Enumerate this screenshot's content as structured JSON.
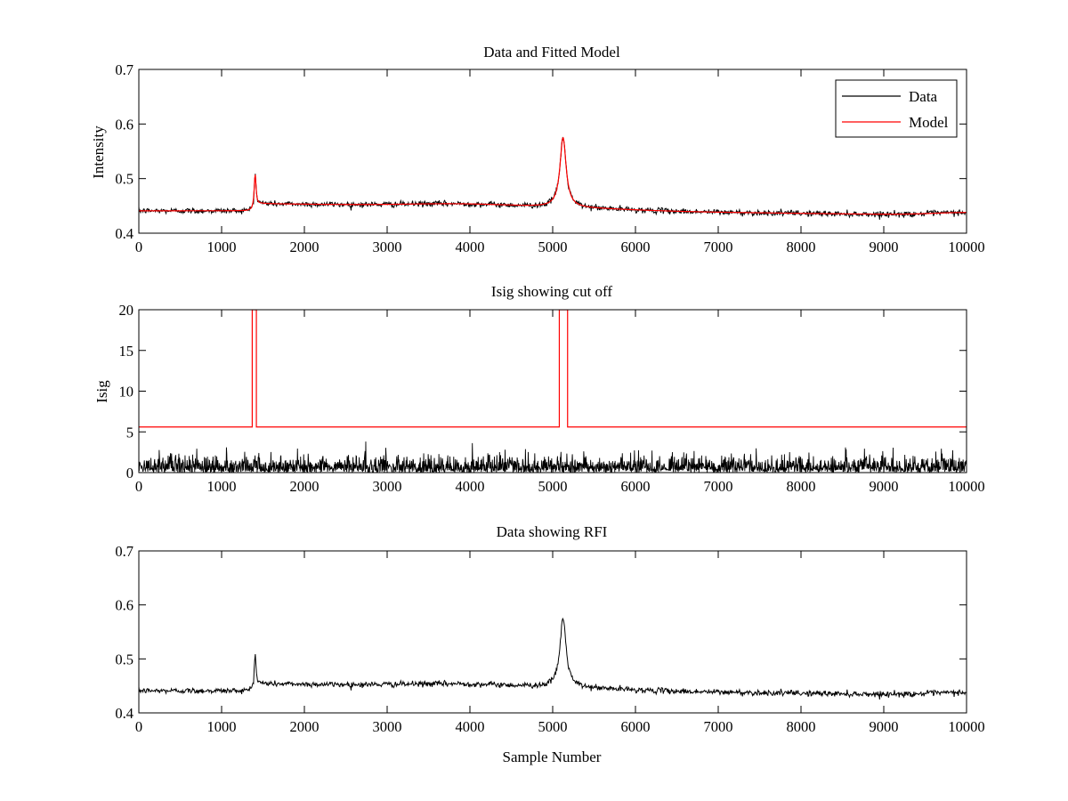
{
  "chart_data": [
    {
      "type": "line",
      "title": "Data and Fitted Model",
      "xlabel": "",
      "ylabel": "Intensity",
      "xlim": [
        0,
        10000
      ],
      "ylim": [
        0.4,
        0.7
      ],
      "xticks": [
        "0",
        "1000",
        "2000",
        "3000",
        "4000",
        "5000",
        "6000",
        "7000",
        "8000",
        "9000",
        "10000"
      ],
      "yticks": [
        "0.4",
        "0.5",
        "0.6",
        "0.7"
      ],
      "legend": {
        "placement": "top-right",
        "entries": [
          "Data",
          "Model"
        ]
      },
      "grid": false,
      "series": [
        {
          "name": "Data",
          "color": "#000000",
          "description_points": {
            "x": [
              0,
              1000,
              1300,
              1400,
              1500,
              2000,
              3000,
              4000,
              4800,
              5050,
              5120,
              5200,
              5400,
              6000,
              7000,
              8000,
              9000,
              10000
            ],
            "y": [
              0.441,
              0.442,
              0.446,
              0.515,
              0.457,
              0.456,
              0.452,
              0.455,
              0.455,
              0.47,
              0.585,
              0.5,
              0.46,
              0.448,
              0.443,
              0.44,
              0.441,
              0.448
            ]
          }
        },
        {
          "name": "Model",
          "color": "#ff0000",
          "description_points": {
            "x": [
              0,
              1000,
              1300,
              1400,
              1500,
              2000,
              3000,
              4000,
              4800,
              5050,
              5120,
              5200,
              5400,
              6000,
              7000,
              8000,
              9000,
              10000
            ],
            "y": [
              0.441,
              0.442,
              0.446,
              0.515,
              0.457,
              0.456,
              0.452,
              0.455,
              0.455,
              0.47,
              0.585,
              0.5,
              0.46,
              0.448,
              0.443,
              0.44,
              0.441,
              0.448
            ]
          }
        }
      ]
    },
    {
      "type": "line",
      "title": "Isig showing cut off",
      "xlabel": "",
      "ylabel": "Isig",
      "xlim": [
        0,
        10000
      ],
      "ylim": [
        0,
        20
      ],
      "xticks": [
        "0",
        "1000",
        "2000",
        "3000",
        "4000",
        "5000",
        "6000",
        "7000",
        "8000",
        "9000",
        "10000"
      ],
      "yticks": [
        "0",
        "5",
        "10",
        "15",
        "20"
      ],
      "grid": false,
      "series": [
        {
          "color": "#000000",
          "description": "noise between 0 and about 4",
          "min": 0,
          "max": 4
        },
        {
          "color": "#ff0000",
          "description": "cut-off threshold with masked regions",
          "baseline": 5.6,
          "masked_ranges": [
            [
              1370,
              1420
            ],
            [
              5080,
              5180
            ]
          ],
          "masked_value": 20
        }
      ]
    },
    {
      "type": "line",
      "title": "Data showing RFI",
      "xlabel": "Sample Number",
      "ylabel": "",
      "xlim": [
        0,
        10000
      ],
      "ylim": [
        0.4,
        0.7
      ],
      "xticks": [
        "0",
        "1000",
        "2000",
        "3000",
        "4000",
        "5000",
        "6000",
        "7000",
        "8000",
        "9000",
        "10000"
      ],
      "yticks": [
        "0.4",
        "0.5",
        "0.6",
        "0.7"
      ],
      "grid": false,
      "series": [
        {
          "color": "#000000",
          "description_points": {
            "x": [
              0,
              1000,
              1300,
              1400,
              1500,
              2000,
              3000,
              4000,
              4800,
              5050,
              5120,
              5200,
              5400,
              6000,
              7000,
              8000,
              9000,
              10000
            ],
            "y": [
              0.441,
              0.442,
              0.446,
              0.515,
              0.457,
              0.456,
              0.452,
              0.455,
              0.455,
              0.47,
              0.585,
              0.5,
              0.46,
              0.448,
              0.443,
              0.44,
              0.441,
              0.448
            ]
          }
        }
      ]
    }
  ]
}
